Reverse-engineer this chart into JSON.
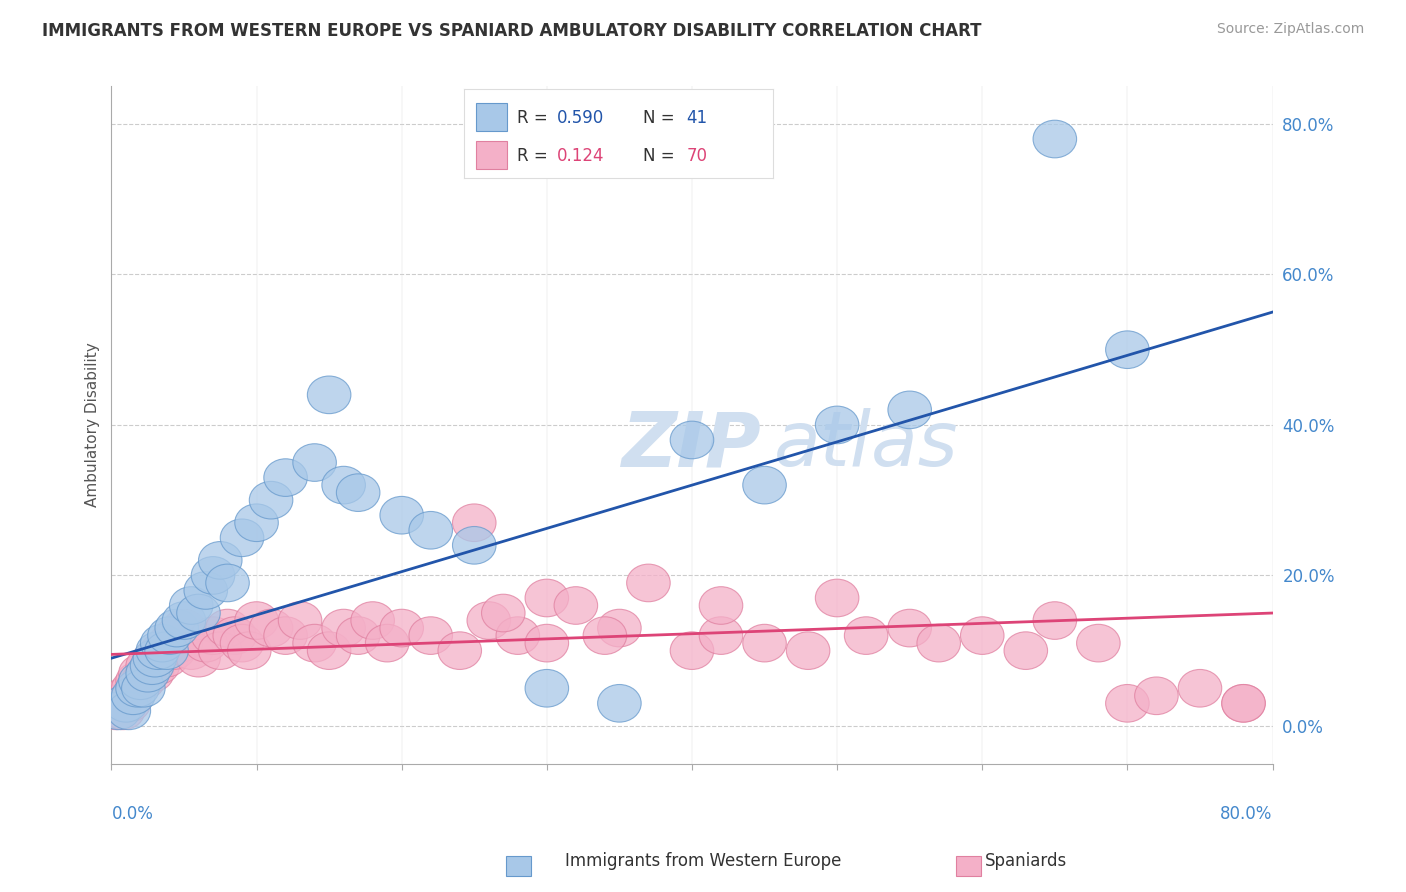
{
  "title": "IMMIGRANTS FROM WESTERN EUROPE VS SPANIARD AMBULATORY DISABILITY CORRELATION CHART",
  "source": "Source: ZipAtlas.com",
  "ylabel": "Ambulatory Disability",
  "ytick_labels": [
    "0.0%",
    "20.0%",
    "40.0%",
    "60.0%",
    "80.0%"
  ],
  "ytick_values": [
    0,
    20,
    40,
    60,
    80
  ],
  "xmin": 0,
  "xmax": 80,
  "ymin": -5,
  "ymax": 85,
  "blue_r": 0.59,
  "blue_n": 41,
  "pink_r": 0.124,
  "pink_n": 70,
  "blue_color": "#a8c8e8",
  "pink_color": "#f4b0c8",
  "blue_edge_color": "#6699cc",
  "pink_edge_color": "#e080a0",
  "blue_line_color": "#2255aa",
  "pink_line_color": "#dd4477",
  "watermark_color": "#d0dff0",
  "grid_color": "#cccccc",
  "blue_scatter_x": [
    0.5,
    1.0,
    1.2,
    1.5,
    1.8,
    2.0,
    2.2,
    2.5,
    2.8,
    3.0,
    3.2,
    3.5,
    3.8,
    4.0,
    4.5,
    5.0,
    5.5,
    6.0,
    6.5,
    7.0,
    7.5,
    8.0,
    9.0,
    10.0,
    11.0,
    12.0,
    14.0,
    15.0,
    16.0,
    17.0,
    20.0,
    22.0,
    25.0,
    30.0,
    35.0,
    40.0,
    45.0,
    50.0,
    55.0,
    65.0,
    70.0
  ],
  "blue_scatter_y": [
    2,
    3,
    2,
    4,
    5,
    6,
    5,
    7,
    8,
    9,
    10,
    11,
    10,
    12,
    13,
    14,
    16,
    15,
    18,
    20,
    22,
    19,
    25,
    27,
    30,
    33,
    35,
    44,
    32,
    31,
    28,
    26,
    24,
    5,
    3,
    38,
    32,
    40,
    42,
    78,
    50
  ],
  "pink_scatter_x": [
    0.3,
    0.5,
    0.8,
    1.0,
    1.2,
    1.5,
    1.8,
    2.0,
    2.2,
    2.5,
    2.8,
    3.0,
    3.2,
    3.5,
    3.8,
    4.0,
    4.3,
    4.5,
    4.8,
    5.0,
    5.5,
    6.0,
    6.5,
    7.0,
    7.5,
    8.0,
    8.5,
    9.0,
    9.5,
    10.0,
    11.0,
    12.0,
    13.0,
    14.0,
    15.0,
    16.0,
    17.0,
    18.0,
    19.0,
    20.0,
    22.0,
    24.0,
    26.0,
    28.0,
    30.0,
    35.0,
    40.0,
    42.0,
    45.0,
    48.0,
    50.0,
    52.0,
    55.0,
    57.0,
    60.0,
    63.0,
    65.0,
    68.0,
    70.0,
    72.0,
    75.0,
    78.0,
    25.0,
    27.0,
    30.0,
    32.0,
    34.0,
    37.0,
    42.0,
    78.0
  ],
  "pink_scatter_y": [
    2,
    3,
    2,
    4,
    3,
    5,
    6,
    7,
    6,
    8,
    7,
    9,
    8,
    10,
    9,
    11,
    10,
    12,
    11,
    13,
    10,
    9,
    11,
    12,
    10,
    13,
    12,
    11,
    10,
    14,
    13,
    12,
    14,
    11,
    10,
    13,
    12,
    14,
    11,
    13,
    12,
    10,
    14,
    12,
    11,
    13,
    10,
    12,
    11,
    10,
    17,
    12,
    13,
    11,
    12,
    10,
    14,
    11,
    3,
    4,
    5,
    3,
    27,
    15,
    17,
    16,
    12,
    19,
    16,
    3
  ]
}
